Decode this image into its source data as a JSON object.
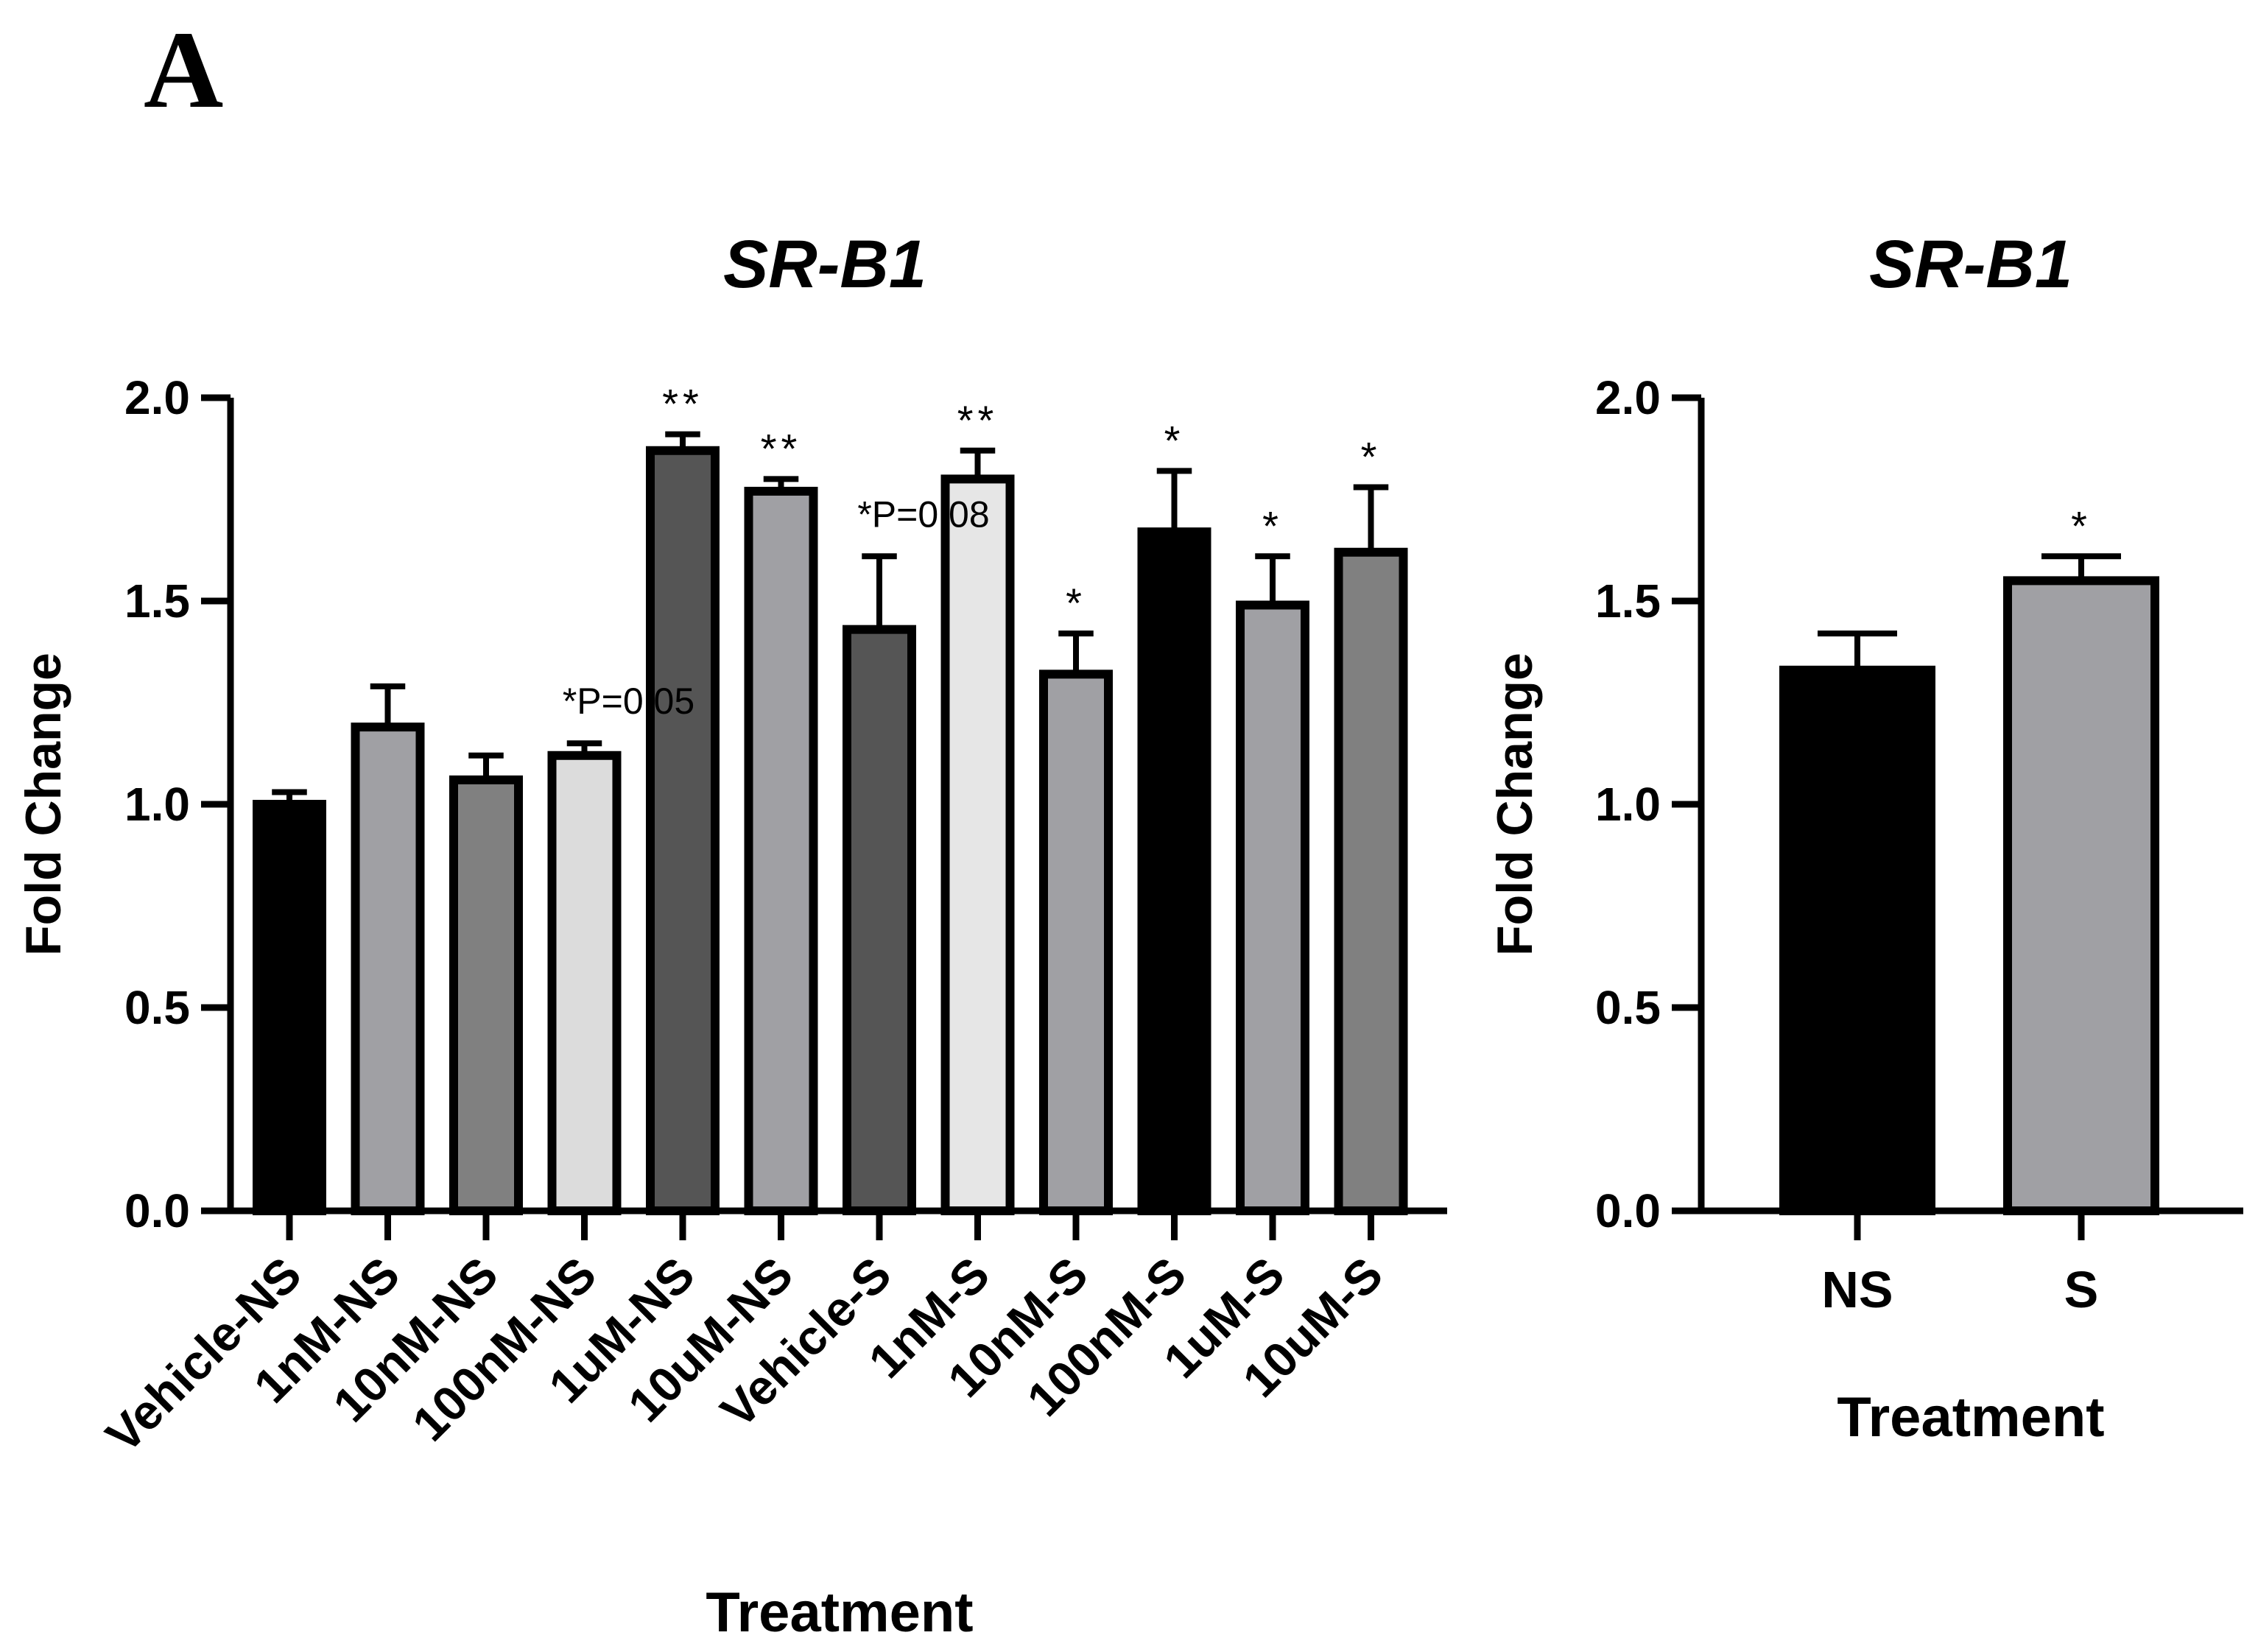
{
  "panel_label": "A",
  "chart_data": [
    {
      "type": "bar",
      "title": "SR-B1",
      "xlabel": "Treatment",
      "ylabel": "Fold Change",
      "ylim": [
        0,
        2.0
      ],
      "yticks": [
        "0.0",
        "0.5",
        "1.0",
        "1.5",
        "2.0"
      ],
      "categories": [
        "Vehicle-NS",
        "1nM-NS",
        "10nM-NS",
        "100nM-NS",
        "1uM-NS",
        "10uM-NS",
        "Vehicle-S",
        "1nM-S",
        "10nM-S",
        "100nM-S",
        "1uM-S",
        "10uM-S"
      ],
      "values": [
        1.0,
        1.19,
        1.06,
        1.12,
        1.87,
        1.77,
        1.43,
        1.8,
        1.32,
        1.67,
        1.49,
        1.62
      ],
      "errors": [
        0.03,
        0.1,
        0.06,
        0.03,
        0.04,
        0.03,
        0.18,
        0.07,
        0.1,
        0.15,
        0.12,
        0.16
      ],
      "colors": [
        "#000000",
        "#a0a0a4",
        "#808080",
        "#dcdcdc",
        "#555555",
        "#a0a0a4",
        "#555555",
        "#e6e6e6",
        "#a0a0a4",
        "#000000",
        "#a0a0a4",
        "#808080"
      ],
      "significance": [
        "",
        "",
        "",
        "",
        "**",
        "**",
        "",
        "**",
        "*",
        "*",
        "*",
        "*"
      ],
      "annotations": [
        {
          "text": "*P=0.05",
          "category": "100nM-NS"
        },
        {
          "text": "*P=0.08",
          "category": "Vehicle-S"
        }
      ]
    },
    {
      "type": "bar",
      "title": "SR-B1",
      "xlabel": "Treatment",
      "ylabel": "Fold Change",
      "ylim": [
        0,
        2.0
      ],
      "yticks": [
        "0.0",
        "0.5",
        "1.0",
        "1.5",
        "2.0"
      ],
      "categories": [
        "NS",
        "S"
      ],
      "values": [
        1.33,
        1.55
      ],
      "errors": [
        0.09,
        0.06
      ],
      "colors": [
        "#000000",
        "#a0a0a4"
      ],
      "significance": [
        "",
        "*"
      ],
      "annotations": []
    }
  ]
}
